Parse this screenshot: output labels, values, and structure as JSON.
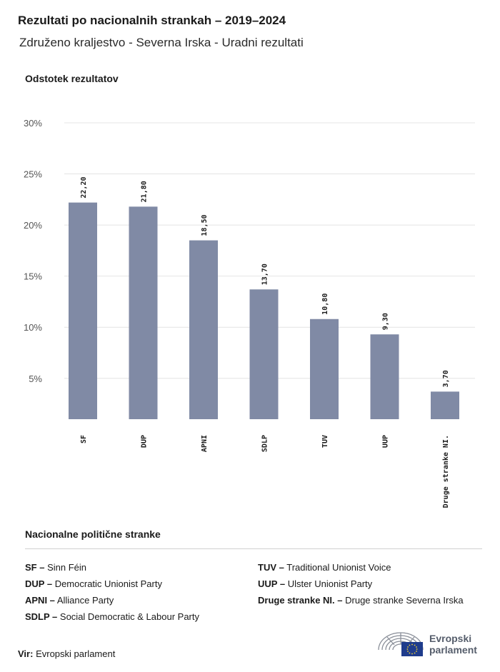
{
  "header": {
    "title": "Rezultati po nacionalnih strankah – 2019–2024",
    "subtitle": "Združeno kraljestvo - Severna Irska - Uradni rezultati"
  },
  "chart_data": {
    "type": "bar",
    "ylabel": "Odstotek rezultatov",
    "categories": [
      "SF",
      "DUP",
      "APNI",
      "SDLP",
      "TUV",
      "UUP",
      "Druge stranke NI."
    ],
    "values": [
      22.2,
      21.8,
      18.5,
      13.7,
      10.8,
      9.3,
      3.7
    ],
    "value_labels": [
      "22,20",
      "21,80",
      "18,50",
      "13,70",
      "10,80",
      "9,30",
      "3,70"
    ],
    "ylim": [
      1,
      30
    ],
    "yticks": [
      5,
      10,
      15,
      20,
      25,
      30
    ],
    "ytick_labels": [
      "5%",
      "10%",
      "15%",
      "20%",
      "25%",
      "30%"
    ],
    "grid": true,
    "bar_color": "#808aa5"
  },
  "legend": {
    "title": "Nacionalne politične stranke",
    "items": [
      {
        "abbr": "SF –",
        "name": "Sinn Féin"
      },
      {
        "abbr": "DUP –",
        "name": "Democratic Unionist Party"
      },
      {
        "abbr": "APNI –",
        "name": "Alliance Party"
      },
      {
        "abbr": "SDLP –",
        "name": "Social Democratic & Labour Party"
      },
      {
        "abbr": "TUV –",
        "name": "Traditional Unionist Voice"
      },
      {
        "abbr": "UUP –",
        "name": "Ulster Unionist Party"
      },
      {
        "abbr": "Druge stranke NI. –",
        "name": "Druge stranke Severna Irska"
      }
    ]
  },
  "footer": {
    "source_label": "Vir:",
    "source_value": "Evropski parlament",
    "logo_line1": "Evropski",
    "logo_line2": "parlament",
    "logo_icon": "european-parliament-hemicycle-icon"
  }
}
